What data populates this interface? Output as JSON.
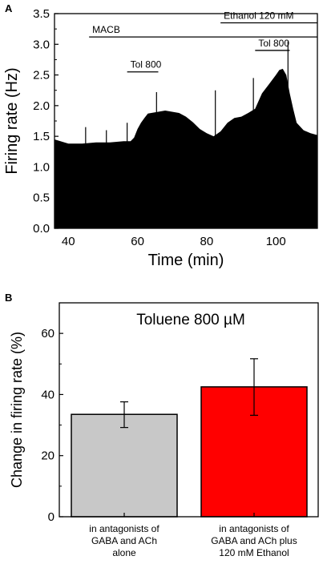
{
  "chart_data": [
    {
      "panel": "A",
      "type": "area",
      "xlabel": "Time (min)",
      "ylabel": "Firing rate (Hz)",
      "xlim": [
        36,
        112
      ],
      "ylim": [
        0,
        3.5
      ],
      "x_ticks": [
        40,
        60,
        80,
        100
      ],
      "y_ticks": [
        0.0,
        0.5,
        1.0,
        1.5,
        2.0,
        2.5,
        3.0,
        3.5
      ],
      "x": [
        36,
        40,
        44,
        48,
        52,
        56,
        58,
        59,
        60,
        61,
        62,
        63,
        64,
        66,
        68,
        70,
        72,
        74,
        76,
        78,
        80,
        82,
        84,
        86,
        88,
        90,
        92,
        94,
        96,
        98,
        100,
        101,
        102,
        103,
        104,
        105,
        106,
        108,
        110,
        112
      ],
      "values": [
        1.45,
        1.38,
        1.38,
        1.4,
        1.4,
        1.42,
        1.42,
        1.48,
        1.62,
        1.72,
        1.8,
        1.87,
        1.88,
        1.9,
        1.92,
        1.9,
        1.88,
        1.82,
        1.73,
        1.62,
        1.55,
        1.5,
        1.58,
        1.72,
        1.8,
        1.82,
        1.88,
        1.95,
        2.2,
        2.35,
        2.5,
        2.58,
        2.6,
        2.5,
        2.2,
        1.95,
        1.72,
        1.6,
        1.55,
        1.52
      ],
      "spikes": [
        {
          "x": 45,
          "y": 1.65
        },
        {
          "x": 51,
          "y": 1.6
        },
        {
          "x": 57,
          "y": 1.72
        },
        {
          "x": 65.5,
          "y": 2.22
        },
        {
          "x": 82.5,
          "y": 2.25
        },
        {
          "x": 93.5,
          "y": 2.45
        },
        {
          "x": 103.5,
          "y": 3.05
        }
      ],
      "annotations": [
        {
          "label": "MACB",
          "x_start": 46,
          "x_end": 112,
          "y": 3.12
        },
        {
          "label": "Ethanol 120 mM",
          "x_start": 84,
          "x_end": 112,
          "y": 3.35
        },
        {
          "label": "Tol 800",
          "x_start": 57,
          "x_end": 66,
          "y": 2.55
        },
        {
          "label": "Tol 800",
          "x_start": 94,
          "x_end": 104,
          "y": 2.9
        }
      ],
      "fill_color": "#000000"
    },
    {
      "panel": "B",
      "type": "bar",
      "title": "Toluene 800 µM",
      "ylabel": "Change in firing rate (%)",
      "ylim": [
        0,
        70
      ],
      "y_ticks": [
        0,
        20,
        40,
        60
      ],
      "categories": [
        [
          "in antagonists of",
          "GABA and ACh",
          "alone"
        ],
        [
          "in antagonists of",
          "GABA and ACh plus",
          "120 mM Ethanol"
        ]
      ],
      "values": [
        33.5,
        42.5
      ],
      "errors": [
        {
          "low": 29.2,
          "high": 37.6
        },
        {
          "low": 33.2,
          "high": 51.7
        }
      ],
      "colors": [
        "#c8c8c8",
        "#ff0000"
      ]
    }
  ],
  "panel_labels": [
    "A",
    "B"
  ]
}
